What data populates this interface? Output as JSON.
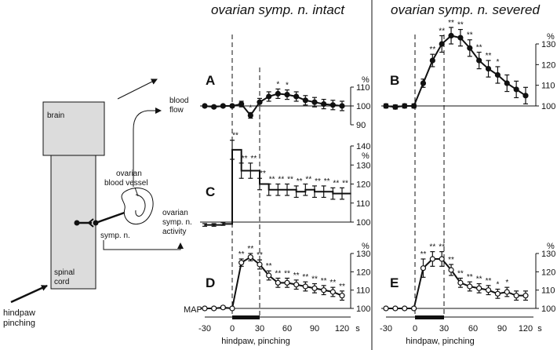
{
  "headers": {
    "left": "ovarian symp. n. intact",
    "right": "ovarian symp. n. severed"
  },
  "diagram": {
    "brain": "brain",
    "spinal_cord": [
      "spinal",
      "cord"
    ],
    "vessel": [
      "ovarian",
      "blood vessel"
    ],
    "symp_n": "symp. n.",
    "blood_flow": [
      "blood",
      "flow"
    ],
    "activity": [
      "ovarian",
      "symp. n.",
      "activity"
    ],
    "hindpaw": [
      "hindpaw",
      "pinching"
    ],
    "map": "MAP"
  },
  "x_axis": {
    "ticks": [
      -30,
      0,
      30,
      60,
      90,
      120
    ],
    "tick_labels": [
      "-30",
      "0",
      "30",
      "60",
      "90",
      "120"
    ],
    "unit": "s",
    "label": "hindpaw, pinching",
    "stim_start": 0,
    "stim_end": 30
  },
  "significance": {
    "single": "*",
    "double": "**"
  },
  "chart_data": [
    {
      "panel": "A",
      "type": "line",
      "marker": "filled",
      "ylim": [
        90,
        110
      ],
      "yticks": [
        90,
        100,
        110
      ],
      "ytick_labels": [
        "90",
        "100",
        "110"
      ],
      "yunit": "%",
      "x": [
        -30,
        -20,
        -10,
        0,
        10,
        20,
        30,
        40,
        50,
        60,
        70,
        80,
        90,
        100,
        110,
        120
      ],
      "y": [
        100,
        99.5,
        100,
        100,
        101,
        95,
        102,
        105,
        106.5,
        106,
        105,
        103,
        102,
        101,
        100.5,
        100
      ],
      "err": [
        0.7,
        0.7,
        0.7,
        0.7,
        1.5,
        1.5,
        2,
        2.5,
        2.5,
        2.5,
        2.5,
        2.5,
        2.5,
        2.5,
        2.5,
        2.5
      ],
      "sig": [
        "",
        "",
        "",
        "",
        "",
        "*",
        "",
        "",
        "*",
        "*",
        "",
        "",
        "",
        "",
        "",
        ""
      ]
    },
    {
      "panel": "B",
      "type": "line",
      "marker": "filled",
      "ylim": [
        100,
        130
      ],
      "yticks": [
        100,
        110,
        120,
        130
      ],
      "ytick_labels": [
        "100",
        "110",
        "120",
        "130"
      ],
      "yunit": "%",
      "x": [
        -30,
        -20,
        -10,
        0,
        10,
        20,
        30,
        40,
        50,
        60,
        70,
        80,
        90,
        100,
        110,
        120
      ],
      "y": [
        100,
        99.5,
        100,
        100,
        111,
        122,
        130,
        134,
        133,
        128,
        122,
        118,
        115,
        111,
        108,
        105
      ],
      "err": [
        1,
        1,
        1,
        1,
        2,
        3,
        4,
        4,
        4,
        4,
        4,
        4,
        4,
        4,
        4,
        4
      ],
      "sig": [
        "",
        "",
        "",
        "",
        "",
        "**",
        "**",
        "**",
        "**",
        "**",
        "**",
        "**",
        "*",
        "",
        "",
        ""
      ]
    },
    {
      "panel": "C",
      "type": "step",
      "marker": "none",
      "ylim": [
        100,
        140
      ],
      "yticks": [
        100,
        110,
        120,
        130,
        140
      ],
      "ytick_labels": [
        "100",
        "110",
        "120",
        "130",
        "140"
      ],
      "yunit": "%",
      "x": [
        -30,
        -20,
        -10,
        0,
        10,
        20,
        30,
        40,
        50,
        60,
        70,
        80,
        90,
        100,
        110,
        120
      ],
      "y": [
        98.5,
        98.5,
        99,
        138,
        127,
        127,
        120,
        117,
        117,
        117,
        116,
        117,
        116,
        116,
        115,
        115
      ],
      "err": [
        0.7,
        0.7,
        0.7,
        5,
        4,
        4,
        3,
        3,
        3,
        3,
        3,
        3,
        3,
        3,
        3,
        3
      ],
      "sig": [
        "",
        "",
        "",
        "**",
        "**",
        "**",
        "**",
        "**",
        "**",
        "**",
        "**",
        "**",
        "**",
        "**",
        "**",
        "**"
      ]
    },
    {
      "panel": "D",
      "type": "line",
      "marker": "open",
      "ylim": [
        100,
        130
      ],
      "yticks": [
        100,
        110,
        120,
        130
      ],
      "ytick_labels": [
        "100",
        "110",
        "120",
        "130"
      ],
      "yunit": "%",
      "x": [
        -30,
        -20,
        -10,
        0,
        10,
        20,
        30,
        40,
        50,
        60,
        70,
        80,
        90,
        100,
        110,
        120
      ],
      "y": [
        100,
        100,
        100.5,
        100,
        125,
        128,
        124,
        118,
        114,
        114,
        113,
        112,
        111,
        110,
        109,
        107
      ],
      "err": [
        0.7,
        0.7,
        0.7,
        0.7,
        2,
        2,
        2.5,
        2.5,
        2.5,
        2.5,
        2.5,
        2.5,
        2.5,
        2.5,
        2.5,
        2.5
      ],
      "sig": [
        "",
        "",
        "",
        "",
        "**",
        "**",
        "**",
        "**",
        "**",
        "**",
        "**",
        "**",
        "**",
        "**",
        "**",
        "**"
      ]
    },
    {
      "panel": "E",
      "type": "line",
      "marker": "open",
      "ylim": [
        100,
        130
      ],
      "yticks": [
        100,
        110,
        120,
        130
      ],
      "ytick_labels": [
        "100",
        "110",
        "120",
        "130"
      ],
      "yunit": "%",
      "x": [
        -30,
        -20,
        -10,
        0,
        10,
        20,
        30,
        40,
        50,
        60,
        70,
        80,
        90,
        100,
        110,
        120
      ],
      "y": [
        100,
        100,
        100,
        100,
        122,
        127,
        127,
        121,
        114,
        112,
        111,
        110,
        108,
        109,
        107,
        107
      ],
      "err": [
        0.7,
        0.7,
        0.7,
        0.7,
        5,
        4,
        4,
        3,
        2.5,
        2.5,
        2.5,
        2.5,
        2.5,
        2.5,
        2.5,
        2.5
      ],
      "sig": [
        "",
        "",
        "",
        "",
        "**",
        "**",
        "**",
        "**",
        "**",
        "**",
        "**",
        "**",
        "*",
        "*",
        "",
        ""
      ]
    }
  ]
}
